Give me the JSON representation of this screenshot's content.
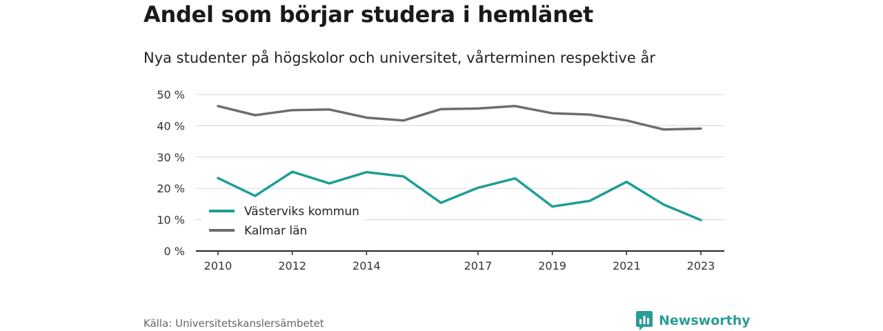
{
  "title": "Andel som börjar studera i hemlänet",
  "subtitle": "Nya studenter på högskolor och universitet, vårterminen respektive år",
  "source": "Källa: Universitetskanslersämbetet",
  "brand": {
    "name": "Newsworthy",
    "icon": "bar-chart-logo-icon",
    "color": "#2a9d96"
  },
  "chart_data": {
    "type": "line",
    "x": [
      2010,
      2011,
      2012,
      2013,
      2014,
      2015,
      2016,
      2017,
      2018,
      2019,
      2020,
      2021,
      2022,
      2023
    ],
    "x_tick_labels": [
      "2010",
      "2012",
      "2014",
      "2017",
      "2019",
      "2021",
      "2023"
    ],
    "y_ticks": [
      0,
      10,
      20,
      30,
      40,
      50
    ],
    "y_tick_labels": [
      "0 %",
      "10 %",
      "20 %",
      "30 %",
      "40 %",
      "50 %"
    ],
    "ylim": [
      0,
      50
    ],
    "grid": true,
    "legend_placement": "bottom-left",
    "series": [
      {
        "name": "Västerviks kommun",
        "color": "#1a9e96",
        "values": [
          23.3,
          17.6,
          25.3,
          21.6,
          25.2,
          23.8,
          15.4,
          20.2,
          23.2,
          14.2,
          16.0,
          22.1,
          14.8,
          9.9
        ]
      },
      {
        "name": "Kalmar län",
        "color": "#6d6c71",
        "values": [
          46.3,
          43.4,
          45.0,
          45.2,
          42.6,
          41.7,
          45.3,
          45.5,
          46.3,
          44.0,
          43.6,
          41.7,
          38.8,
          39.1
        ]
      }
    ]
  }
}
